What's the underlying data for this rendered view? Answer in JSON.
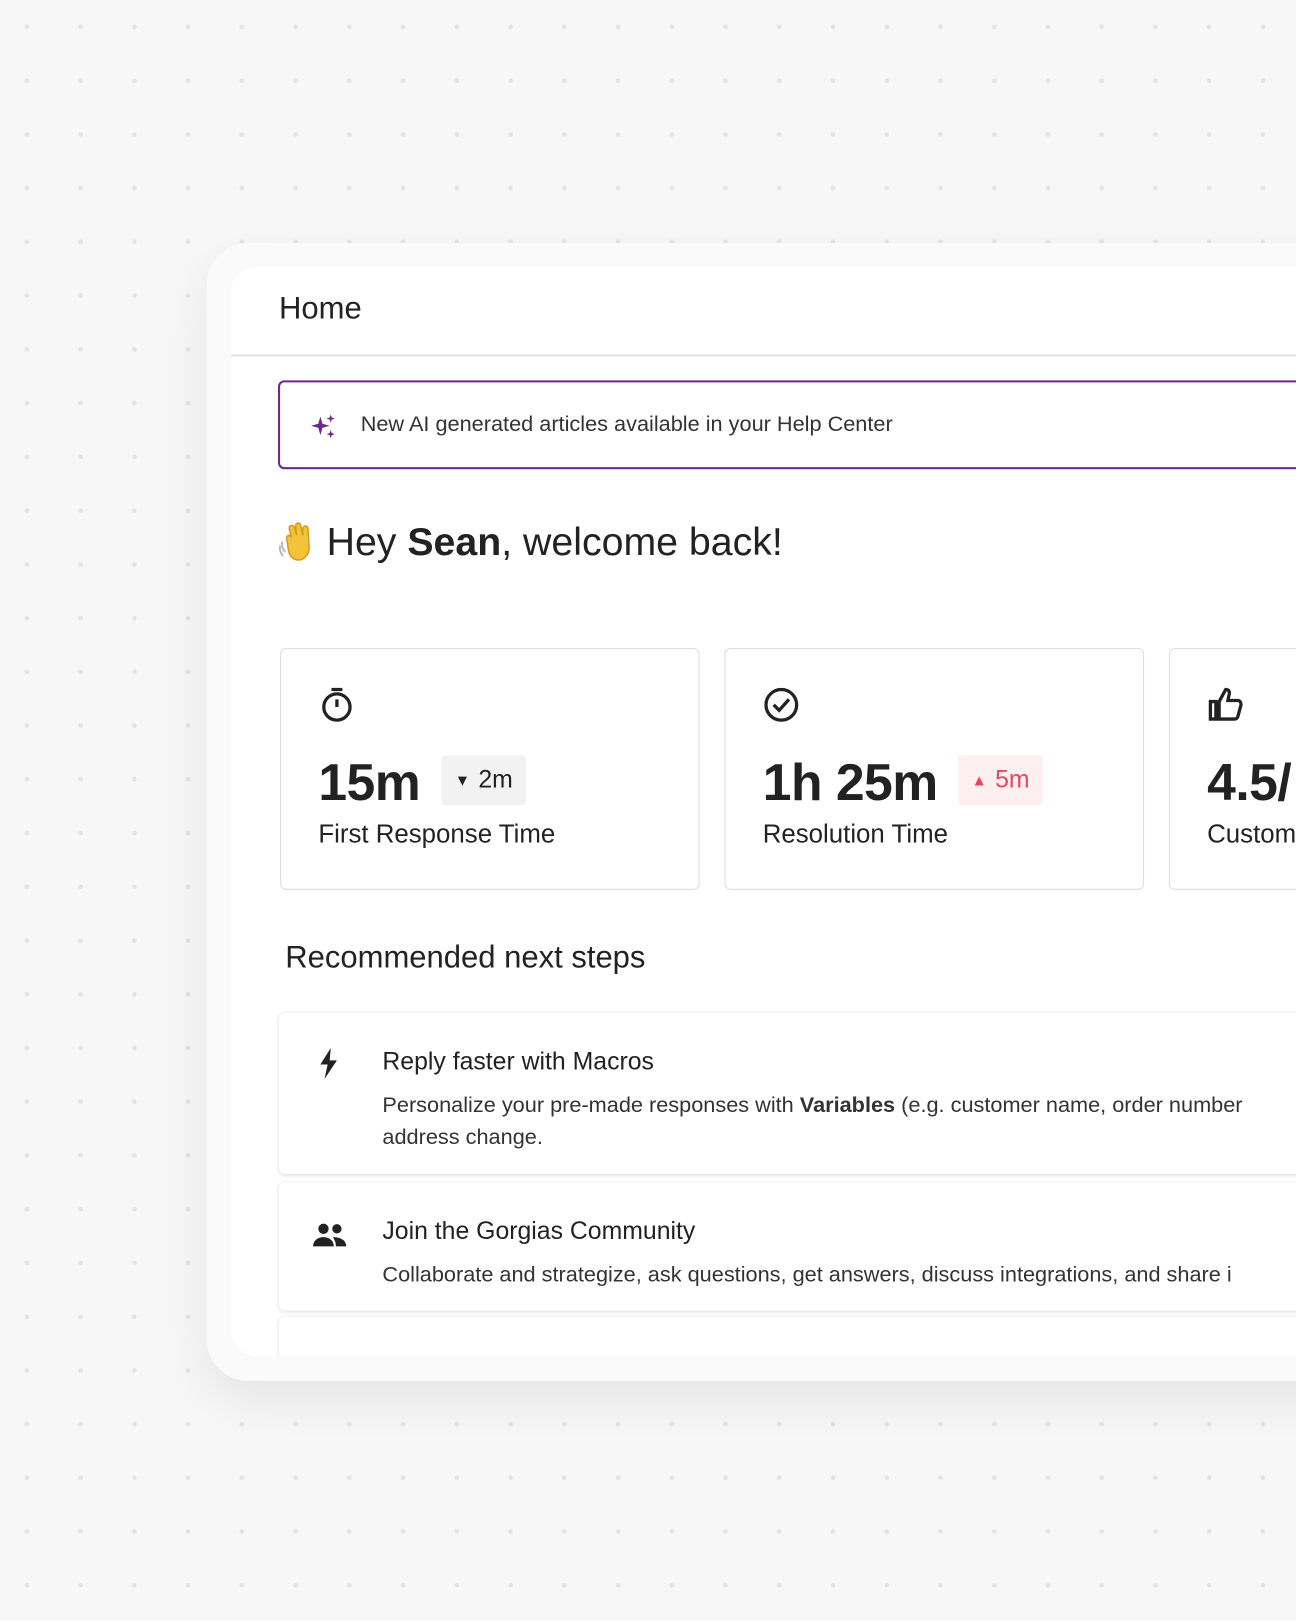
{
  "header": {
    "title": "Home"
  },
  "banner": {
    "text": "New AI generated articles available in your Help Center"
  },
  "greeting": {
    "prefix": "Hey ",
    "name": "Sean",
    "suffix": ", welcome back!"
  },
  "metrics": [
    {
      "value": "15m",
      "change": "2m",
      "trend": "down",
      "label": "First Response Time"
    },
    {
      "value": "1h 25m",
      "change": "5m",
      "trend": "up",
      "label": "Resolution Time"
    },
    {
      "value": "4.5/",
      "label": "Custom"
    }
  ],
  "steps_title": "Recommended next steps",
  "steps": [
    {
      "title": "Reply faster with Macros",
      "description": {
        "before": "Personalize your pre-made responses with ",
        "bold": "Variables",
        "after": " (e.g. customer name, order number",
        "line2": "address change."
      }
    },
    {
      "title": "Join the Gorgias Community",
      "description": {
        "before": "Collaborate and strategize, ask questions, get answers, discuss integrations, and share i"
      }
    }
  ]
}
